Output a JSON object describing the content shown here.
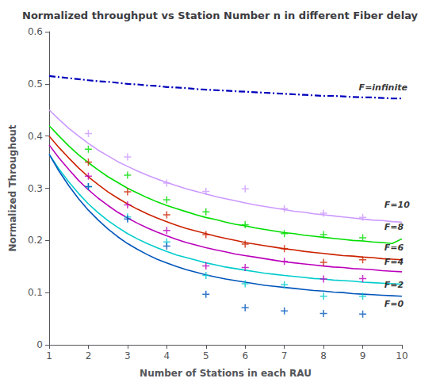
{
  "chart_data": {
    "type": "line",
    "title": "Normalized throughput vs Station Number n in different Fiber delay",
    "xlabel": "Number of Stations in each RAU",
    "ylabel": "Normalized Throughout",
    "xlim": [
      1,
      10
    ],
    "ylim": [
      0,
      0.6
    ],
    "xticks": [
      1,
      2,
      3,
      4,
      5,
      6,
      7,
      8,
      9,
      10
    ],
    "yticks": [
      0,
      0.1,
      0.2,
      0.3,
      0.4,
      0.5,
      0.6
    ],
    "grid": false,
    "x": [
      1.0,
      1.25,
      1.5,
      1.75,
      2.0,
      2.25,
      2.5,
      2.75,
      3.0,
      3.25,
      3.5,
      3.75,
      4.0,
      4.25,
      4.5,
      4.75,
      5.0,
      5.25,
      5.5,
      5.75,
      6.0,
      6.25,
      6.5,
      6.75,
      7.0,
      7.25,
      7.5,
      7.75,
      8.0,
      8.25,
      8.5,
      8.75,
      9.0,
      9.25,
      9.5,
      9.75,
      10.0
    ],
    "scatter_x": [
      2,
      3,
      4,
      5,
      6,
      7,
      8,
      9
    ],
    "marker": "plus",
    "series": [
      {
        "name": "F=infinite",
        "color": "#0000BB",
        "line_style": "dashdot",
        "values": [
          0.515,
          0.513,
          0.511,
          0.509,
          0.507,
          0.505,
          0.504,
          0.502,
          0.5,
          0.499,
          0.497,
          0.496,
          0.494,
          0.493,
          0.492,
          0.49,
          0.489,
          0.488,
          0.487,
          0.486,
          0.485,
          0.484,
          0.483,
          0.482,
          0.481,
          0.48,
          0.479,
          0.478,
          0.477,
          0.477,
          0.476,
          0.475,
          0.474,
          0.474,
          0.473,
          0.472,
          0.472
        ],
        "scatter_values": null,
        "annotation_at": [
          8.9,
          0.484
        ]
      },
      {
        "name": "F=10",
        "color": "#CC99FF",
        "line_style": "solid",
        "values": [
          0.45,
          0.432,
          0.415,
          0.4,
          0.386,
          0.373,
          0.362,
          0.351,
          0.342,
          0.333,
          0.325,
          0.318,
          0.311,
          0.305,
          0.299,
          0.294,
          0.289,
          0.284,
          0.28,
          0.276,
          0.272,
          0.268,
          0.265,
          0.262,
          0.259,
          0.256,
          0.254,
          0.251,
          0.249,
          0.247,
          0.245,
          0.243,
          0.241,
          0.239,
          0.238,
          0.236,
          0.235
        ],
        "scatter_values": [
          0.405,
          0.36,
          0.31,
          0.294,
          0.299,
          0.261,
          0.252,
          0.244
        ],
        "annotation_at": [
          9.55,
          0.26
        ]
      },
      {
        "name": "F=8",
        "color": "#00DD00",
        "line_style": "solid",
        "values": [
          0.42,
          0.4,
          0.381,
          0.364,
          0.349,
          0.335,
          0.322,
          0.311,
          0.3,
          0.291,
          0.282,
          0.274,
          0.267,
          0.261,
          0.255,
          0.249,
          0.244,
          0.24,
          0.235,
          0.231,
          0.228,
          0.224,
          0.221,
          0.218,
          0.215,
          0.213,
          0.21,
          0.208,
          0.206,
          0.204,
          0.202,
          0.2,
          0.199,
          0.197,
          0.196,
          0.194,
          0.203
        ],
        "scatter_values": [
          0.375,
          0.325,
          0.278,
          0.255,
          0.23,
          0.213,
          0.211,
          0.205
        ],
        "annotation_at": [
          9.55,
          0.217
        ]
      },
      {
        "name": "F=6",
        "color": "#CC2200",
        "line_style": "solid",
        "values": [
          0.4,
          0.378,
          0.358,
          0.339,
          0.322,
          0.307,
          0.293,
          0.281,
          0.27,
          0.26,
          0.251,
          0.243,
          0.236,
          0.229,
          0.223,
          0.218,
          0.213,
          0.208,
          0.204,
          0.2,
          0.196,
          0.193,
          0.19,
          0.187,
          0.184,
          0.182,
          0.179,
          0.177,
          0.175,
          0.173,
          0.171,
          0.17,
          0.168,
          0.167,
          0.165,
          0.164,
          0.163
        ],
        "scatter_values": [
          0.35,
          0.293,
          0.249,
          0.211,
          0.193,
          0.184,
          0.158,
          0.163
        ],
        "annotation_at": [
          9.55,
          0.177
        ]
      },
      {
        "name": "F=4",
        "color": "#BB00BB",
        "line_style": "solid",
        "values": [
          0.383,
          0.358,
          0.336,
          0.315,
          0.297,
          0.281,
          0.267,
          0.254,
          0.243,
          0.233,
          0.224,
          0.216,
          0.209,
          0.202,
          0.196,
          0.191,
          0.186,
          0.182,
          0.178,
          0.174,
          0.171,
          0.168,
          0.165,
          0.162,
          0.159,
          0.157,
          0.155,
          0.153,
          0.151,
          0.149,
          0.148,
          0.146,
          0.145,
          0.144,
          0.142,
          0.141,
          0.14
        ],
        "scatter_values": [
          0.323,
          0.268,
          0.219,
          0.151,
          0.148,
          0.16,
          0.126,
          0.127
        ],
        "annotation_at": [
          9.55,
          0.15
        ]
      },
      {
        "name": "F=2",
        "color": "#00CCCC",
        "line_style": "solid",
        "values": [
          0.365,
          0.337,
          0.312,
          0.29,
          0.27,
          0.253,
          0.238,
          0.225,
          0.213,
          0.203,
          0.194,
          0.186,
          0.179,
          0.172,
          0.167,
          0.162,
          0.157,
          0.153,
          0.149,
          0.146,
          0.143,
          0.14,
          0.137,
          0.135,
          0.133,
          0.131,
          0.129,
          0.127,
          0.126,
          0.124,
          0.123,
          0.122,
          0.12,
          0.119,
          0.118,
          0.117,
          0.116
        ],
        "scatter_values": [
          0.303,
          0.245,
          0.197,
          0.133,
          0.117,
          0.115,
          0.093,
          0.093
        ],
        "annotation_at": [
          9.55,
          0.106
        ]
      },
      {
        "name": "F=0",
        "color": "#0055BB",
        "line_style": "solid",
        "values": [
          0.365,
          0.333,
          0.305,
          0.28,
          0.258,
          0.239,
          0.222,
          0.207,
          0.194,
          0.183,
          0.173,
          0.164,
          0.157,
          0.15,
          0.144,
          0.139,
          0.134,
          0.13,
          0.126,
          0.123,
          0.12,
          0.117,
          0.114,
          0.112,
          0.11,
          0.108,
          0.106,
          0.104,
          0.103,
          0.101,
          0.1,
          0.098,
          0.097,
          0.096,
          0.095,
          0.094,
          0.093
        ],
        "scatter_values": [
          0.303,
          0.241,
          0.189,
          0.097,
          0.071,
          0.065,
          0.06,
          0.059
        ],
        "annotation_at": [
          9.55,
          0.07
        ]
      }
    ]
  }
}
